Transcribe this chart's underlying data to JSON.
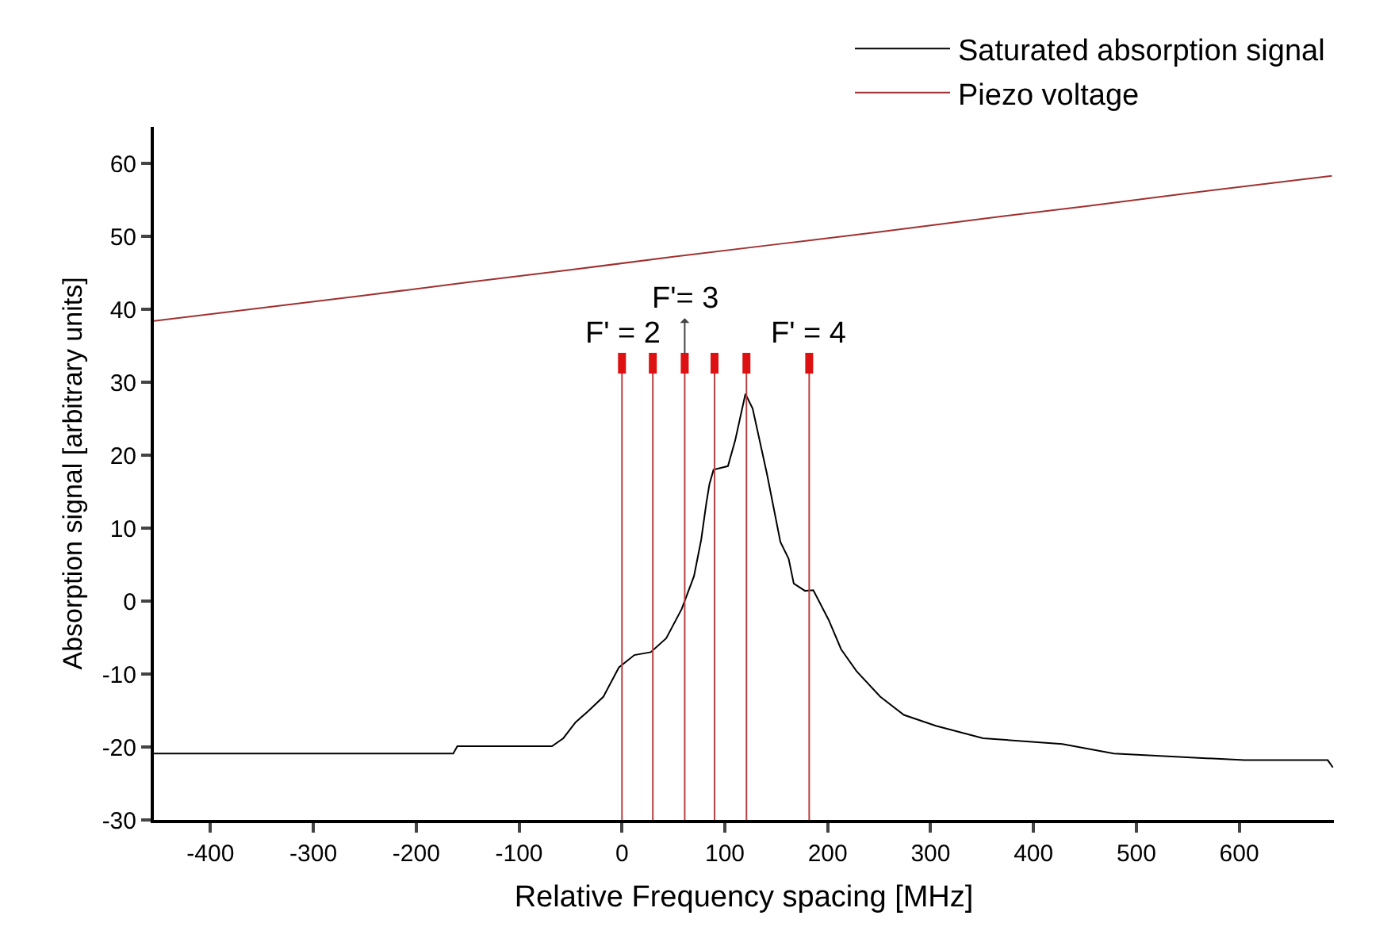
{
  "chart_data": {
    "type": "line",
    "xlabel": "Relative Frequency spacing [MHz]",
    "ylabel": "Absorption signal [arbitrary units]",
    "xlim": [
      -455,
      692
    ],
    "xticks": [
      -400,
      -300,
      -200,
      -100,
      0,
      100,
      200,
      300,
      400,
      500,
      600
    ],
    "ylim": [
      -30,
      65
    ],
    "yticks": [
      -30,
      -20,
      -10,
      0,
      10,
      20,
      30,
      40,
      50,
      60
    ],
    "legend": "top right",
    "grid": false,
    "marker": "none",
    "line_style": "solid",
    "series": [
      {
        "name": "Saturated absorption signal",
        "color": "#000000",
        "x": [
          -455,
          -300,
          -164,
          -160,
          -68,
          -57,
          -45,
          -33,
          -18,
          -3,
          12,
          28,
          43,
          58,
          70,
          77,
          82,
          85,
          89,
          103,
          110,
          120,
          127,
          141,
          154,
          162,
          167,
          178,
          186,
          201,
          213,
          228,
          251,
          274,
          305,
          351,
          428,
          478,
          605,
          686,
          691
        ],
        "values": [
          -20.9,
          -20.9,
          -20.9,
          -19.9,
          -19.9,
          -18.8,
          -16.6,
          -15.1,
          -13.1,
          -9.1,
          -7.4,
          -7,
          -5.1,
          -1.1,
          3.4,
          8.4,
          13.4,
          16,
          18,
          18.5,
          22,
          28.4,
          26.4,
          17.4,
          8.1,
          5.8,
          2.4,
          1.4,
          1.5,
          -2.6,
          -6.6,
          -9.6,
          -13.1,
          -15.6,
          -17.1,
          -18.8,
          -19.6,
          -20.9,
          -21.8,
          -21.8,
          -22.8
        ]
      },
      {
        "name": "Piezo voltage",
        "color": "#a03030",
        "x": [
          -455,
          -350,
          -250,
          -150,
          -50,
          50,
          150,
          250,
          350,
          450,
          550,
          650,
          690
        ],
        "values": [
          38.4,
          40.2,
          41.9,
          43.7,
          45.4,
          47.2,
          48.9,
          50.6,
          52.4,
          54.1,
          55.9,
          57.6,
          58.3
        ]
      }
    ],
    "ref_lines": [
      {
        "axis": "x",
        "value": 0,
        "color": "#b84040"
      },
      {
        "axis": "x",
        "value": 30,
        "color": "#b84040"
      },
      {
        "axis": "x",
        "value": 61,
        "color": "#b84040"
      },
      {
        "axis": "x",
        "value": 90,
        "color": "#b84040"
      },
      {
        "axis": "x",
        "value": 121,
        "color": "#b84040"
      },
      {
        "axis": "x",
        "value": 182,
        "color": "#b84040"
      }
    ],
    "annotations": [
      {
        "text": "F' = 2",
        "x": 0,
        "y": 34
      },
      {
        "text": "F'= 3",
        "x": 61,
        "y": 34
      },
      {
        "text": "F' = 4",
        "x": 182,
        "y": 34
      }
    ]
  }
}
